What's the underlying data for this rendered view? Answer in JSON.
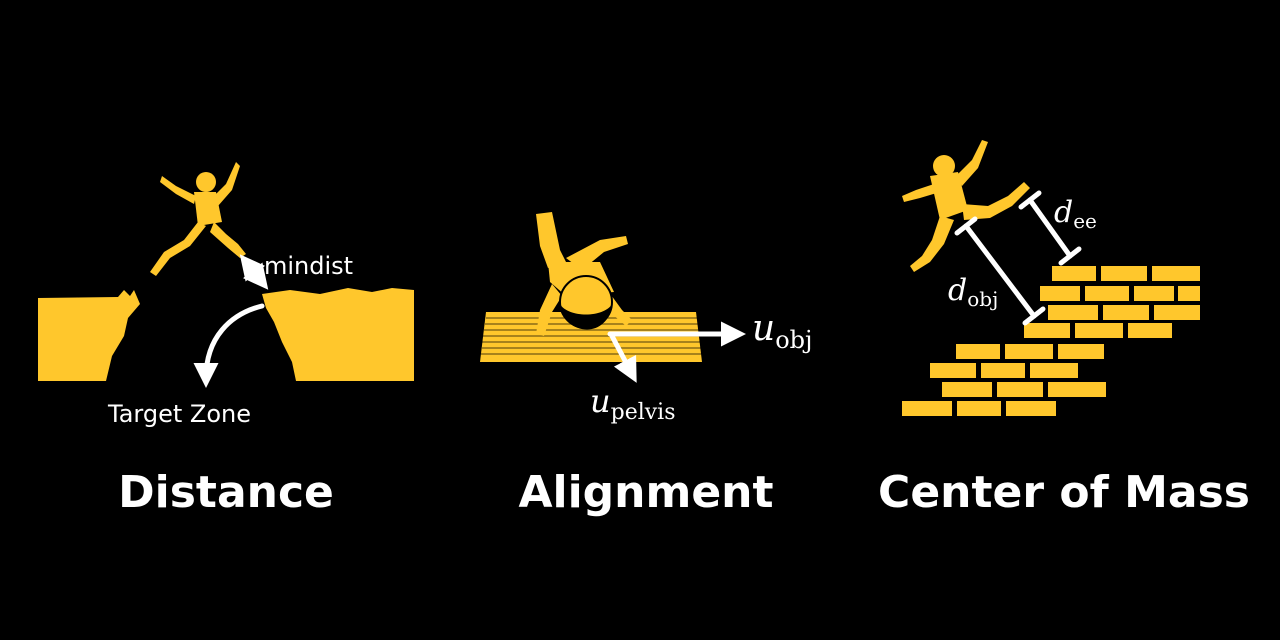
{
  "panels": [
    {
      "title": "Distance",
      "labels": {
        "mindist": "mindist",
        "target_zone": "Target Zone"
      }
    },
    {
      "title": "Alignment",
      "labels": {
        "u_obj": {
          "base": "u",
          "sub": "obj"
        },
        "u_pelvis": {
          "base": "u",
          "sub": "pelvis"
        }
      }
    },
    {
      "title": "Center of Mass",
      "labels": {
        "d_ee": {
          "base": "d",
          "sub": "ee"
        },
        "d_obj": {
          "base": "d",
          "sub": "obj"
        }
      }
    }
  ],
  "colors": {
    "background": "#000000",
    "accent": "#FFC72C",
    "text": "#FFFFFF"
  },
  "icons": [
    "jumping-person-icon",
    "cliff-gap-icon",
    "handstand-person-icon",
    "mat-icon",
    "leaping-person-icon",
    "brick-stairs-icon"
  ]
}
